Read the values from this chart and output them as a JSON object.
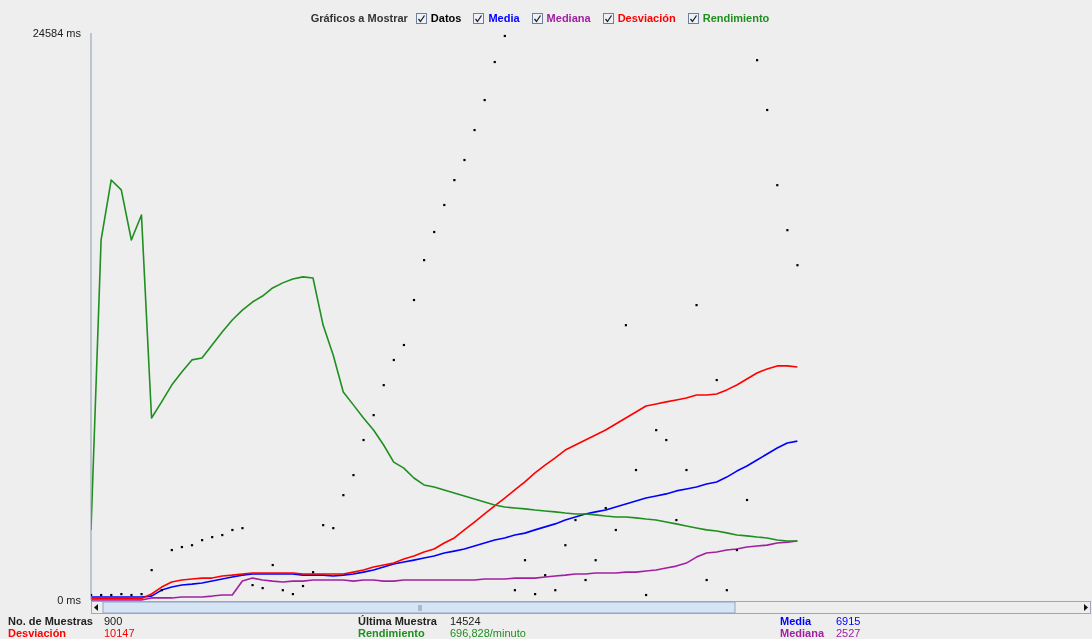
{
  "chart_data": {
    "type": "line",
    "legend_title": "Gráficos a Mostrar",
    "legend": "top",
    "tick_labels": "y",
    "categories": [
      null,
      null,
      null,
      null,
      null,
      null,
      null,
      null,
      null,
      null,
      null,
      null,
      null,
      null,
      null,
      null,
      null,
      null,
      null,
      null,
      null,
      null,
      null,
      null,
      null,
      null,
      null,
      null,
      null,
      null,
      null,
      null,
      null,
      null,
      null,
      null,
      null,
      null,
      null,
      null,
      null,
      null,
      null,
      null,
      null,
      null,
      null,
      null,
      null,
      null,
      null,
      null,
      null,
      null,
      null,
      null,
      null,
      null,
      null,
      null,
      null,
      null,
      null,
      null,
      null,
      null,
      null,
      null,
      null,
      null,
      null,
      null,
      null,
      null,
      null,
      null,
      null,
      null,
      null,
      null,
      null,
      null,
      null,
      null,
      null,
      null,
      null,
      null,
      null,
      null,
      null,
      null,
      null,
      null,
      null,
      null,
      null,
      null,
      null,
      null
    ],
    "ylim": [
      0,
      24584
    ],
    "yticks": [
      {
        "value": 0,
        "label": "0  ms"
      },
      {
        "value": 24584,
        "label": "24584  ms"
      }
    ],
    "series": [
      {
        "name": "Datos",
        "type": "scatter",
        "color": "#000000",
        "values": [
          220,
          220,
          220,
          260,
          220,
          260,
          1300,
          430,
          2170,
          2300,
          2380,
          2600,
          2730,
          2820,
          3040,
          3120,
          650,
          520,
          1520,
          430,
          260,
          610,
          1210,
          3250,
          3120,
          4550,
          5420,
          6940,
          8020,
          9320,
          10410,
          11060,
          13010,
          14740,
          15960,
          17130,
          18210,
          19080,
          20380,
          21680,
          23330,
          24460,
          430,
          1730,
          260,
          1080,
          430,
          2380,
          3470,
          870,
          1730,
          3990,
          3040,
          11920,
          5640,
          220,
          7370,
          6940,
          3470,
          5640,
          12790,
          870,
          9540,
          430,
          2170,
          4340,
          23410,
          21250,
          17990,
          16040,
          14520,
          null,
          null,
          null,
          null,
          null,
          null,
          null,
          null,
          null,
          null,
          null,
          null,
          null,
          null,
          null,
          null,
          null,
          null,
          null,
          null,
          null,
          null,
          null,
          null,
          null,
          null,
          null,
          null,
          null
        ]
      },
      {
        "name": "Media",
        "color": "#0000ff",
        "values": [
          130,
          130,
          130,
          130,
          130,
          130,
          170,
          430,
          560,
          650,
          690,
          740,
          820,
          910,
          1000,
          1080,
          1130,
          1130,
          1130,
          1130,
          1130,
          1080,
          1080,
          1080,
          1040,
          1080,
          1130,
          1210,
          1300,
          1430,
          1560,
          1650,
          1730,
          1820,
          1910,
          2040,
          2120,
          2210,
          2340,
          2470,
          2600,
          2690,
          2820,
          2900,
          3040,
          3170,
          3300,
          3470,
          3600,
          3730,
          3820,
          3900,
          4030,
          4160,
          4290,
          4420,
          4510,
          4600,
          4730,
          4810,
          4900,
          5030,
          5120,
          5330,
          5590,
          5810,
          6070,
          6330,
          6590,
          6810,
          6890,
          null,
          null,
          null,
          null,
          null,
          null,
          null,
          null,
          null,
          null,
          null,
          null,
          null,
          null,
          null,
          null,
          null,
          null,
          null,
          null,
          null,
          null,
          null,
          null,
          null,
          null,
          null,
          null,
          null
        ]
      },
      {
        "name": "Mediana",
        "color": "#a020a0",
        "values": [
          0,
          0,
          0,
          0,
          0,
          0,
          90,
          90,
          90,
          130,
          130,
          130,
          170,
          220,
          220,
          820,
          950,
          870,
          820,
          780,
          820,
          820,
          870,
          870,
          870,
          870,
          820,
          870,
          870,
          820,
          820,
          870,
          870,
          870,
          870,
          870,
          870,
          870,
          870,
          910,
          910,
          910,
          950,
          950,
          950,
          1000,
          1040,
          1080,
          1130,
          1130,
          1170,
          1170,
          1170,
          1210,
          1210,
          1260,
          1300,
          1390,
          1470,
          1600,
          1860,
          2040,
          2080,
          2170,
          2210,
          2300,
          2340,
          2380,
          2470,
          2510,
          2560,
          null,
          null,
          null,
          null,
          null,
          null,
          null,
          null,
          null,
          null,
          null,
          null,
          null,
          null,
          null,
          null,
          null,
          null,
          null,
          null,
          null,
          null,
          null,
          null,
          null,
          null,
          null,
          null,
          null
        ]
      },
      {
        "name": "Desviación",
        "color": "#ff0000",
        "values": [
          60,
          60,
          60,
          60,
          60,
          60,
          260,
          560,
          780,
          870,
          910,
          950,
          950,
          1040,
          1080,
          1130,
          1170,
          1170,
          1170,
          1170,
          1170,
          1130,
          1130,
          1130,
          1130,
          1130,
          1210,
          1300,
          1430,
          1520,
          1600,
          1780,
          1910,
          2080,
          2210,
          2470,
          2690,
          3040,
          3380,
          3730,
          4080,
          4420,
          4770,
          5120,
          5510,
          5850,
          6160,
          6500,
          6720,
          6940,
          7150,
          7370,
          7630,
          7890,
          8150,
          8410,
          8500,
          8590,
          8670,
          8760,
          8890,
          8890,
          8930,
          9110,
          9320,
          9580,
          9840,
          10020,
          10150,
          10150,
          10100,
          null,
          null,
          null,
          null,
          null,
          null,
          null,
          null,
          null,
          null,
          null,
          null,
          null,
          null,
          null,
          null,
          null,
          null,
          null,
          null,
          null,
          null,
          null,
          null,
          null,
          null,
          null,
          null,
          null
        ]
      },
      {
        "name": "Rendimiento",
        "color": "#1f8f1f",
        "values": [
          3040,
          15610,
          18210,
          17780,
          15610,
          16690,
          7890,
          8590,
          9320,
          9890,
          10410,
          10490,
          11060,
          11620,
          12140,
          12570,
          12920,
          13180,
          13530,
          13750,
          13920,
          14010,
          13960,
          11920,
          10620,
          9020,
          8460,
          7890,
          7370,
          6720,
          5980,
          5720,
          5290,
          4990,
          4900,
          4770,
          4640,
          4510,
          4380,
          4250,
          4120,
          4030,
          3990,
          3950,
          3900,
          3860,
          3820,
          3770,
          3730,
          3730,
          3690,
          3640,
          3600,
          3600,
          3560,
          3510,
          3470,
          3380,
          3300,
          3210,
          3120,
          3040,
          2990,
          2910,
          2820,
          2780,
          2730,
          2690,
          2600,
          2560,
          2560,
          null,
          null,
          null,
          null,
          null,
          null,
          null,
          null,
          null,
          null,
          null,
          null,
          null,
          null,
          null,
          null,
          null,
          null,
          null,
          null,
          null,
          null,
          null,
          null,
          null,
          null,
          null,
          null,
          null
        ]
      }
    ],
    "annotations": [
      "No. de Muestras",
      "900",
      "Desviación",
      "10147",
      "Última Muestra",
      "14524",
      "Rendimiento",
      "696,828/minuto",
      "Media",
      "6915",
      "Mediana",
      "2527"
    ]
  }
}
